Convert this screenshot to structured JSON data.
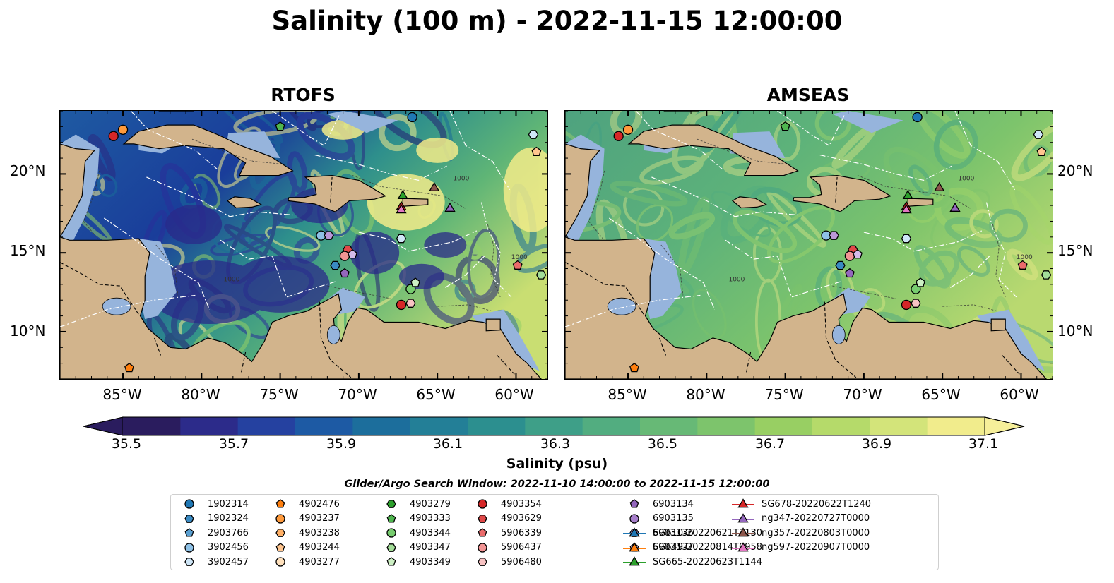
{
  "title": "Salinity (100 m) - 2022-11-15 12:00:00",
  "panels": [
    {
      "title": "RTOFS"
    },
    {
      "title": "AMSEAS"
    }
  ],
  "axes": {
    "lat_ticks": [
      "20°N",
      "15°N",
      "10°N"
    ],
    "lon_ticks": [
      "85°W",
      "80°W",
      "75°W",
      "70°W",
      "65°W",
      "60°W"
    ],
    "lon_range": [
      -89,
      -58
    ],
    "lat_range": [
      7,
      24
    ],
    "contour_labels": [
      "1000"
    ]
  },
  "colorbar": {
    "label": "Salinity (psu)",
    "ticks": [
      "35.5",
      "35.7",
      "35.9",
      "36.1",
      "36.3",
      "36.5",
      "36.7",
      "36.9",
      "37.1"
    ],
    "range": [
      35.4,
      37.2
    ],
    "colormap": [
      "#2a1c5e",
      "#2c2b8a",
      "#2541a0",
      "#1d5aa4",
      "#1c6e9c",
      "#237f97",
      "#2c8f8f",
      "#3e9f88",
      "#52ad80",
      "#67b976",
      "#7dc46c",
      "#98cf63",
      "#b5da6a",
      "#d3e47a",
      "#f1ec8c"
    ]
  },
  "search_window": "Glider/Argo Search Window: 2022-11-10 14:00:00 to 2022-11-15 12:00:00",
  "legend": {
    "items": [
      {
        "label": "1902314",
        "marker": "circle",
        "color": "#1f77b4"
      },
      {
        "label": "1902324",
        "marker": "hexagon",
        "color": "#3a8ac2"
      },
      {
        "label": "2903766",
        "marker": "pentagon",
        "color": "#5aa0d2"
      },
      {
        "label": "3902456",
        "marker": "circle",
        "color": "#8ec1e6"
      },
      {
        "label": "3902457",
        "marker": "hexagon",
        "color": "#cfe6f7"
      },
      {
        "label": "4902476",
        "marker": "pentagon",
        "color": "#ff7f0e"
      },
      {
        "label": "4903237",
        "marker": "circle",
        "color": "#ff9a3c"
      },
      {
        "label": "4903238",
        "marker": "hexagon",
        "color": "#ffb066"
      },
      {
        "label": "4903244",
        "marker": "pentagon",
        "color": "#ffc58f"
      },
      {
        "label": "4903277",
        "marker": "circle",
        "color": "#ffe1bd"
      },
      {
        "label": "4903279",
        "marker": "hexagon",
        "color": "#2ca02c"
      },
      {
        "label": "4903333",
        "marker": "pentagon",
        "color": "#4fb64f"
      },
      {
        "label": "4903344",
        "marker": "circle",
        "color": "#77cc6f"
      },
      {
        "label": "4903347",
        "marker": "hexagon",
        "color": "#a3dd98"
      },
      {
        "label": "4903349",
        "marker": "pentagon",
        "color": "#cdf0c4"
      },
      {
        "label": "4903354",
        "marker": "circle",
        "color": "#d62728"
      },
      {
        "label": "4903629",
        "marker": "hexagon",
        "color": "#e04848"
      },
      {
        "label": "5906339",
        "marker": "pentagon",
        "color": "#ea6b6b"
      },
      {
        "label": "5906437",
        "marker": "circle",
        "color": "#f29494"
      },
      {
        "label": "5906480",
        "marker": "hexagon",
        "color": "#f8c3c3"
      },
      {
        "label": "6903134",
        "marker": "pentagon",
        "color": "#9467bd"
      },
      {
        "label": "6903135",
        "marker": "circle",
        "color": "#a77fcb"
      },
      {
        "label": "6903136",
        "marker": "hexagon",
        "color": "#bb98d8"
      },
      {
        "label": "6903137",
        "marker": "pentagon",
        "color": "#d4bbea"
      },
      {
        "label": "SG610-20220621T1130",
        "marker": "triangle-line",
        "color": "#1f77b4"
      },
      {
        "label": "SG649-20220814T0958",
        "marker": "triangle-line",
        "color": "#ff7f0e"
      },
      {
        "label": "SG665-20220623T1144",
        "marker": "triangle-line",
        "color": "#2ca02c"
      },
      {
        "label": "SG678-20220622T1240",
        "marker": "triangle-line",
        "color": "#d62728"
      },
      {
        "label": "ng347-20220727T0000",
        "marker": "triangle-line",
        "color": "#9467bd"
      },
      {
        "label": "ng357-20220803T0000",
        "marker": "triangle-line",
        "color": "#8c564b"
      },
      {
        "label": "ng597-20220907T0000",
        "marker": "triangle-line",
        "color": "#e377c2"
      }
    ]
  },
  "observations": [
    {
      "id": "1902314",
      "lon": -66.6,
      "lat": 23.6
    },
    {
      "id": "4903237",
      "lon": -85.0,
      "lat": 22.8
    },
    {
      "id": "4903354",
      "lon": -85.6,
      "lat": 22.4
    },
    {
      "id": "4903333",
      "lon": -75.0,
      "lat": 23.0
    },
    {
      "id": "4903244",
      "lon": -58.7,
      "lat": 21.4
    },
    {
      "id": "SG665-20220623T1144",
      "lon": -67.2,
      "lat": 18.6
    },
    {
      "id": "ng357-20220803T0000",
      "lon": -65.2,
      "lat": 19.1
    },
    {
      "id": "SG678-20220622T1240",
      "lon": -67.3,
      "lat": 17.9
    },
    {
      "id": "ng597-20220907T0000",
      "lon": -67.3,
      "lat": 17.7
    },
    {
      "id": "ng347-20220727T0000",
      "lon": -64.2,
      "lat": 17.8
    },
    {
      "id": "3902456",
      "lon": -72.4,
      "lat": 16.1
    },
    {
      "id": "6903136",
      "lon": -71.9,
      "lat": 16.1
    },
    {
      "id": "3902457",
      "lon": -67.3,
      "lat": 15.9
    },
    {
      "id": "4903629",
      "lon": -70.7,
      "lat": 15.2
    },
    {
      "id": "5906437",
      "lon": -70.9,
      "lat": 14.8
    },
    {
      "id": "6903137",
      "lon": -70.4,
      "lat": 14.9
    },
    {
      "id": "1902324",
      "lon": -71.5,
      "lat": 14.2
    },
    {
      "id": "6903134",
      "lon": -70.9,
      "lat": 13.7
    },
    {
      "id": "5906339",
      "lon": -59.9,
      "lat": 14.2
    },
    {
      "id": "4903344",
      "lon": -66.7,
      "lat": 12.7
    },
    {
      "id": "4903349",
      "lon": -66.4,
      "lat": 13.1
    },
    {
      "id": "4903354",
      "lon": -67.3,
      "lat": 11.7
    },
    {
      "id": "5906480",
      "lon": -66.7,
      "lat": 11.8
    },
    {
      "id": "4903347",
      "lon": -58.4,
      "lat": 13.6
    },
    {
      "id": "4902476",
      "lon": -84.6,
      "lat": 7.7
    },
    {
      "id": "3902457",
      "lon": -58.9,
      "lat": 22.5
    }
  ]
}
